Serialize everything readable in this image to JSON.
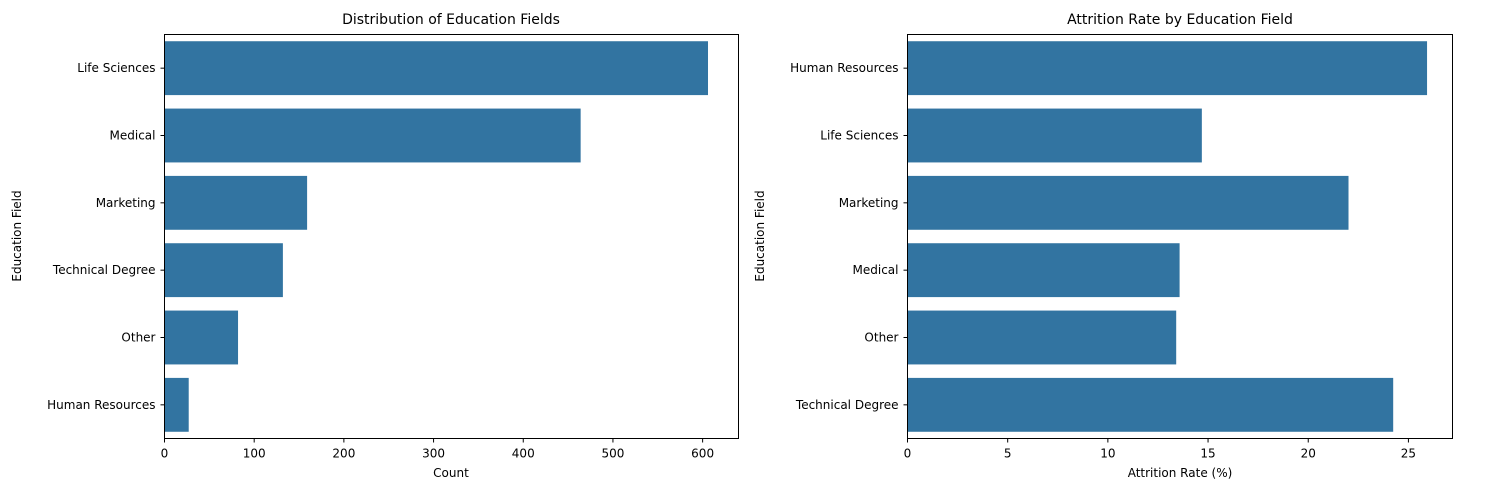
{
  "chart_data": [
    {
      "type": "bar",
      "orientation": "horizontal",
      "title": "Distribution of Education Fields",
      "xlabel": "Count",
      "ylabel": "Education Field",
      "categories": [
        "Life Sciences",
        "Medical",
        "Marketing",
        "Technical Degree",
        "Other",
        "Human Resources"
      ],
      "values": [
        606,
        464,
        159,
        132,
        82,
        27
      ],
      "xlim": [
        0,
        640
      ],
      "xticks": [
        0,
        100,
        200,
        300,
        400,
        500,
        600
      ],
      "color": "#3274a1",
      "grid": false
    },
    {
      "type": "bar",
      "orientation": "horizontal",
      "title": "Attrition Rate by Education Field",
      "xlabel": "Attrition Rate (%)",
      "ylabel": "Education Field",
      "categories": [
        "Human Resources",
        "Life Sciences",
        "Marketing",
        "Medical",
        "Other",
        "Technical Degree"
      ],
      "values": [
        25.93,
        14.69,
        22.01,
        13.58,
        13.41,
        24.24
      ],
      "xlim": [
        0,
        27.2
      ],
      "xticks": [
        0,
        5,
        10,
        15,
        20,
        25
      ],
      "color": "#3274a1",
      "grid": false
    }
  ]
}
